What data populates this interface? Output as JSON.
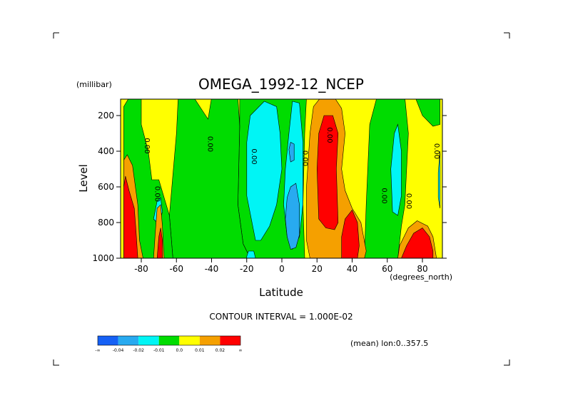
{
  "chart_data": {
    "type": "heatmap",
    "title": "OMEGA_1992-12_NCEP",
    "xlabel": "Latitude",
    "x_units": "(degrees_north)",
    "ylabel": "Level",
    "y_units": "(millibar)",
    "xlim": [
      -90,
      90
    ],
    "ylim": [
      1000,
      100
    ],
    "x_ticks": [
      {
        "value": -80,
        "label": "-80"
      },
      {
        "value": -60,
        "label": "-60"
      },
      {
        "value": -40,
        "label": "-40"
      },
      {
        "value": -20,
        "label": "-20"
      },
      {
        "value": 0,
        "label": "0"
      },
      {
        "value": 20,
        "label": "20"
      },
      {
        "value": 40,
        "label": "40"
      },
      {
        "value": 60,
        "label": "60"
      },
      {
        "value": 80,
        "label": "80"
      }
    ],
    "y_ticks": [
      {
        "value": 200,
        "label": "200"
      },
      {
        "value": 400,
        "label": "400"
      },
      {
        "value": 600,
        "label": "600"
      },
      {
        "value": 800,
        "label": "800"
      },
      {
        "value": 1000,
        "label": "1000"
      }
    ],
    "contour_interval_text": "CONTOUR INTERVAL = 1.000E-02",
    "mean_note": "(mean) lon:0..357.5",
    "contour_labels": [
      {
        "lat": -78,
        "level": 370,
        "text": "0.00"
      },
      {
        "lat": -72,
        "level": 640,
        "text": "0.00"
      },
      {
        "lat": -42,
        "level": 360,
        "text": "0.00"
      },
      {
        "lat": -17,
        "level": 430,
        "text": "0.00"
      },
      {
        "lat": 12,
        "level": 440,
        "text": "0.00"
      },
      {
        "lat": 26,
        "level": 310,
        "text": "0.00"
      },
      {
        "lat": 57,
        "level": 650,
        "text": "0.00"
      },
      {
        "lat": 71,
        "level": 680,
        "text": "0.00"
      },
      {
        "lat": 87,
        "level": 400,
        "text": "0.00"
      }
    ],
    "colorbar": [
      {
        "color": "#1560f5",
        "label": "-∞"
      },
      {
        "color": "#28aaf0",
        "label": "-0.04"
      },
      {
        "color": "#00f5f5",
        "label": "-0.02"
      },
      {
        "color": "#00dc00",
        "label": "-0.01"
      },
      {
        "color": "#ffff00",
        "label": "0.0"
      },
      {
        "color": "#f5a000",
        "label": "0.01"
      },
      {
        "color": "#ff0000",
        "label": "0.02"
      },
      {
        "color": "",
        "label": "∞"
      }
    ],
    "colors": {
      "negative_strong": "#1560f5",
      "negative_mid": "#28aaf0",
      "negative_weak": "#00f5f5",
      "near_zero_negative": "#00dc00",
      "near_zero_positive": "#ffff00",
      "positive_weak": "#f5a000",
      "positive_strong": "#ff0000"
    },
    "regions": [
      {
        "level": "negative_weak",
        "points": [
          [
            -15,
            900
          ],
          [
            -20,
            650
          ],
          [
            -20,
            350
          ],
          [
            -18,
            200
          ],
          [
            -10,
            120
          ],
          [
            -3,
            150
          ],
          [
            -1,
            300
          ],
          [
            0,
            500
          ],
          [
            -3,
            700
          ],
          [
            -7,
            820
          ],
          [
            -12,
            900
          ]
        ]
      },
      {
        "level": "negative_weak",
        "points": [
          [
            1,
            700
          ],
          [
            2,
            500
          ],
          [
            4,
            300
          ],
          [
            6,
            120
          ],
          [
            10,
            130
          ],
          [
            12,
            350
          ],
          [
            12,
            700
          ],
          [
            10,
            880
          ],
          [
            6,
            950
          ],
          [
            3,
            880
          ]
        ]
      },
      {
        "level": "negative_mid",
        "points": [
          [
            2,
            780
          ],
          [
            3,
            660
          ],
          [
            5,
            600
          ],
          [
            8,
            580
          ],
          [
            10,
            700
          ],
          [
            10,
            870
          ],
          [
            8,
            940
          ],
          [
            5,
            950
          ],
          [
            3,
            880
          ]
        ]
      },
      {
        "level": "negative_mid",
        "points": [
          [
            4,
            390
          ],
          [
            5,
            350
          ],
          [
            7,
            360
          ],
          [
            7,
            450
          ],
          [
            5,
            460
          ]
        ]
      },
      {
        "level": "negative_weak",
        "points": [
          [
            -73,
            780
          ],
          [
            -71,
            680
          ],
          [
            -69,
            660
          ],
          [
            -68,
            740
          ],
          [
            -70,
            810
          ]
        ]
      },
      {
        "level": "negative_weak",
        "points": [
          [
            63,
            740
          ],
          [
            62,
            500
          ],
          [
            64,
            300
          ],
          [
            66,
            250
          ],
          [
            68,
            400
          ],
          [
            68,
            650
          ],
          [
            66,
            760
          ]
        ]
      },
      {
        "level": "negative_weak",
        "points": [
          [
            89,
            520
          ],
          [
            90,
            400
          ],
          [
            90,
            720
          ],
          [
            89,
            660
          ]
        ]
      },
      {
        "level": "negative_weak",
        "points": [
          [
            -20,
            990
          ],
          [
            -19,
            960
          ],
          [
            -16,
            960
          ],
          [
            -15,
            1000
          ],
          [
            -20,
            1000
          ]
        ]
      },
      {
        "level": "positive_weak",
        "points": [
          [
            -90,
            1000
          ],
          [
            -90,
            450
          ],
          [
            -88,
            420
          ],
          [
            -85,
            480
          ],
          [
            -82,
            700
          ],
          [
            -81,
            900
          ],
          [
            -79,
            1000
          ]
        ]
      },
      {
        "level": "positive_strong",
        "points": [
          [
            -90,
            1000
          ],
          [
            -90,
            600
          ],
          [
            -89,
            540
          ],
          [
            -87,
            620
          ],
          [
            -84,
            720
          ],
          [
            -83,
            850
          ],
          [
            -82,
            1000
          ]
        ]
      },
      {
        "level": "positive_weak",
        "points": [
          [
            -73,
            1000
          ],
          [
            -72,
            850
          ],
          [
            -71,
            720
          ],
          [
            -69,
            700
          ],
          [
            -68,
            820
          ],
          [
            -67,
            1000
          ]
        ]
      },
      {
        "level": "positive_strong",
        "points": [
          [
            -71,
            1000
          ],
          [
            -70,
            880
          ],
          [
            -69,
            830
          ],
          [
            -68,
            900
          ],
          [
            -68,
            1000
          ]
        ]
      },
      {
        "level": "positive_weak",
        "points": [
          [
            14,
            900
          ],
          [
            14,
            600
          ],
          [
            16,
            300
          ],
          [
            18,
            150
          ],
          [
            22,
            100
          ],
          [
            30,
            100
          ],
          [
            34,
            160
          ],
          [
            36,
            300
          ],
          [
            34,
            500
          ],
          [
            36,
            620
          ],
          [
            40,
            720
          ],
          [
            45,
            800
          ],
          [
            48,
            960
          ],
          [
            47,
            1000
          ],
          [
            16,
            1000
          ]
        ]
      },
      {
        "level": "positive_strong",
        "points": [
          [
            21,
            780
          ],
          [
            20,
            500
          ],
          [
            21,
            300
          ],
          [
            24,
            200
          ],
          [
            29,
            200
          ],
          [
            32,
            300
          ],
          [
            31,
            500
          ],
          [
            32,
            800
          ],
          [
            30,
            840
          ],
          [
            25,
            830
          ]
        ]
      },
      {
        "level": "positive_strong",
        "points": [
          [
            34,
            1000
          ],
          [
            34,
            880
          ],
          [
            36,
            780
          ],
          [
            40,
            730
          ],
          [
            43,
            800
          ],
          [
            44,
            930
          ],
          [
            43,
            1000
          ]
        ]
      },
      {
        "level": "positive_weak",
        "points": [
          [
            66,
            1000
          ],
          [
            67,
            930
          ],
          [
            72,
            830
          ],
          [
            77,
            790
          ],
          [
            83,
            820
          ],
          [
            86,
            880
          ],
          [
            88,
            1000
          ]
        ]
      },
      {
        "level": "positive_strong",
        "points": [
          [
            68,
            1000
          ],
          [
            71,
            930
          ],
          [
            75,
            860
          ],
          [
            80,
            830
          ],
          [
            84,
            880
          ],
          [
            86,
            960
          ],
          [
            86,
            1000
          ]
        ]
      }
    ]
  }
}
